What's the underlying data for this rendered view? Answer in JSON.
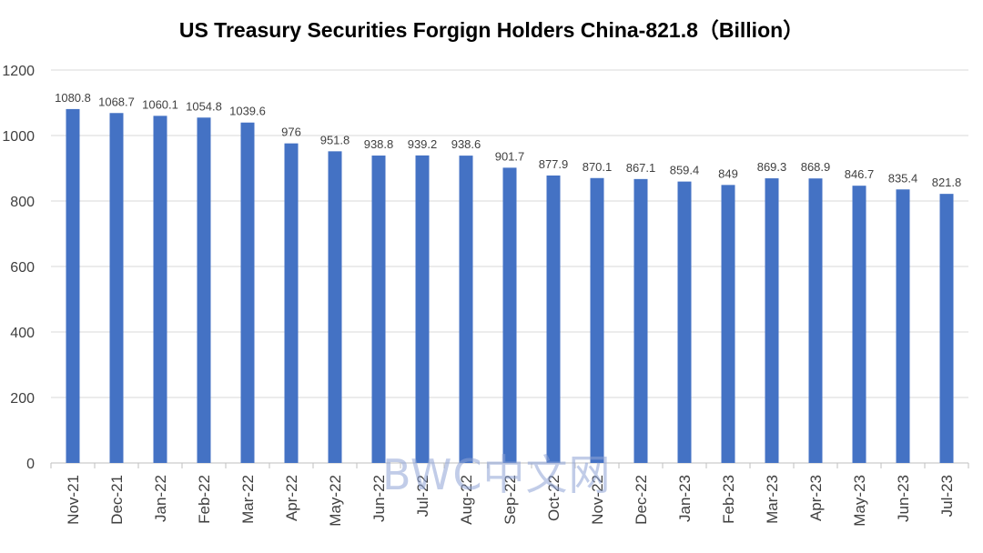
{
  "chart_data": {
    "type": "bar",
    "title": "US Treasury Securities Forgign Holders China-821.8（Billion）",
    "categories": [
      "Nov-21",
      "Dec-21",
      "Jan-22",
      "Feb-22",
      "Mar-22",
      "Apr-22",
      "May-22",
      "Jun-22",
      "Jul-22",
      "Aug-22",
      "Sep-22",
      "Oct-22",
      "Nov-22",
      "Dec-22",
      "Jan-23",
      "Feb-23",
      "Mar-23",
      "Apr-23",
      "May-23",
      "Jun-23",
      "Jul-23"
    ],
    "values": [
      1080.8,
      1068.7,
      1060.1,
      1054.8,
      1039.6,
      976,
      951.8,
      938.8,
      939.2,
      938.6,
      901.7,
      877.9,
      870.1,
      867.1,
      859.4,
      849,
      869.3,
      868.9,
      846.7,
      835.4,
      821.8
    ],
    "data_labels": [
      "1080.8",
      "1068.7",
      "1060.1",
      "1054.8",
      "1039.6",
      "976",
      "951.8",
      "938.8",
      "939.2",
      "938.6",
      "901.7",
      "877.9",
      "870.1",
      "867.1",
      "859.4",
      "849",
      "869.3",
      "868.9",
      "846.7",
      "835.4",
      "821.8"
    ],
    "yticks": [
      "0",
      "200",
      "400",
      "600",
      "800",
      "1000",
      "1200"
    ],
    "ylim": [
      0,
      1200
    ],
    "grid": true,
    "bar_color": "#4472c4",
    "grid_color": "#d9d9d9",
    "watermark": "BWC中文网"
  }
}
